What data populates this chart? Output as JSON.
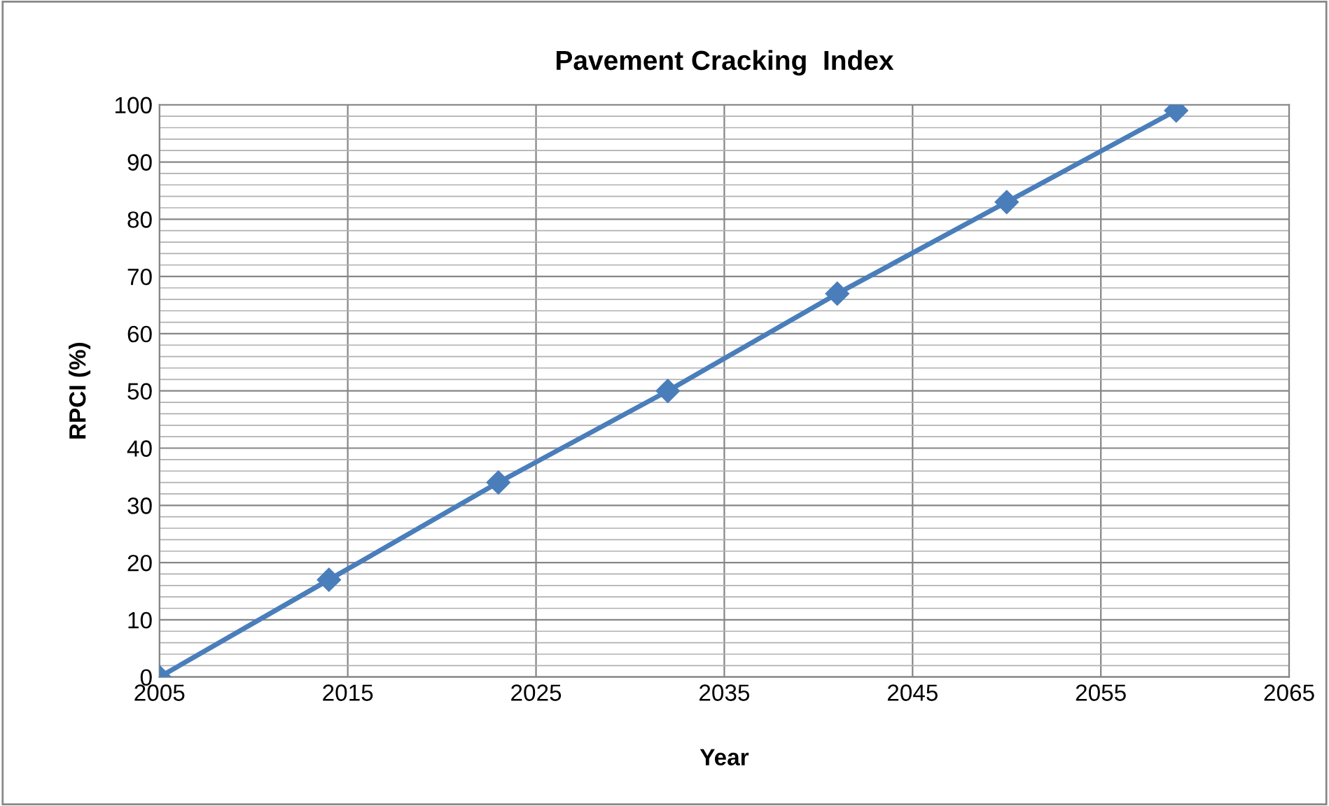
{
  "chart_data": {
    "type": "line",
    "title": "Pavement Cracking  Index",
    "xlabel": "Year",
    "ylabel": "RPCI (%)",
    "x": [
      2005,
      2014,
      2023,
      2032,
      2041,
      2050,
      2059
    ],
    "series": [
      {
        "color": "#4a7ebb",
        "values": [
          0,
          17,
          34,
          50,
          67,
          83,
          99
        ]
      }
    ],
    "xlim": [
      2005,
      2065
    ],
    "xticks": [
      2005,
      2015,
      2025,
      2035,
      2045,
      2055,
      2065
    ],
    "ylim": [
      0,
      100
    ],
    "yticks": [
      0,
      10,
      20,
      30,
      40,
      50,
      60,
      70,
      80,
      90,
      100
    ],
    "grid": true,
    "marker": "diamond",
    "line_style": "solid"
  }
}
